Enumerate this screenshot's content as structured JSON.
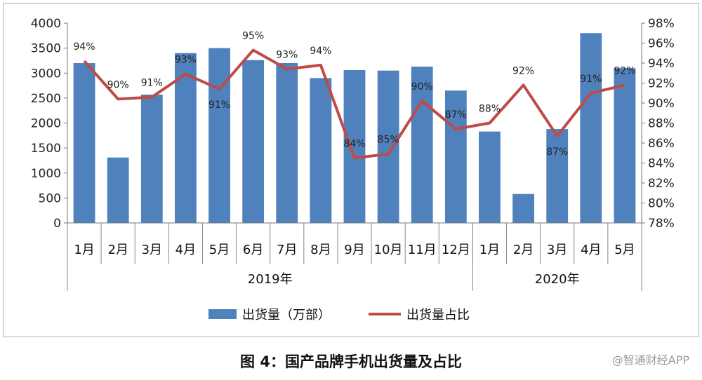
{
  "chart_data": {
    "type": "bar",
    "categories": [
      "1月",
      "2月",
      "3月",
      "4月",
      "5月",
      "6月",
      "7月",
      "8月",
      "9月",
      "10月",
      "11月",
      "12月",
      "1月",
      "2月",
      "3月",
      "4月",
      "5月"
    ],
    "groups": [
      {
        "label": "2019年",
        "count": 12
      },
      {
        "label": "2020年",
        "count": 5
      }
    ],
    "series": [
      {
        "name": "出货量（万部）",
        "type": "bar",
        "axis": "left",
        "color": "#4f81bd",
        "values": [
          3200,
          1310,
          2570,
          3400,
          3500,
          3260,
          3200,
          2900,
          3060,
          3050,
          3130,
          2650,
          1830,
          580,
          1880,
          3800,
          3100
        ]
      },
      {
        "name": "出货量占比",
        "type": "line",
        "axis": "right",
        "color": "#be4b48",
        "values": [
          94.2,
          90.4,
          90.6,
          92.9,
          91.4,
          95.3,
          93.4,
          93.8,
          84.5,
          84.9,
          90.2,
          87.4,
          88.0,
          91.8,
          86.7,
          91.0,
          91.8
        ],
        "labels": [
          "94%",
          "90%",
          "91%",
          "93%",
          "91%",
          "95%",
          "93%",
          "94%",
          "84%",
          "85%",
          "90%",
          "87%",
          "88%",
          "92%",
          "87%",
          "91%",
          "92%"
        ]
      }
    ],
    "y_left": {
      "min": 0,
      "max": 4000,
      "ticks": [
        "0",
        "500",
        "1000",
        "1500",
        "2000",
        "2500",
        "3000",
        "3500",
        "4000"
      ]
    },
    "y_right": {
      "min": 78,
      "max": 98,
      "ticks": [
        "78%",
        "80%",
        "82%",
        "84%",
        "86%",
        "88%",
        "90%",
        "92%",
        "94%",
        "96%",
        "98%"
      ]
    },
    "legend_position": "bottom",
    "grid": false
  },
  "caption": "图 4：国产品牌手机出货量及占比",
  "watermark": "@智通财经APP"
}
